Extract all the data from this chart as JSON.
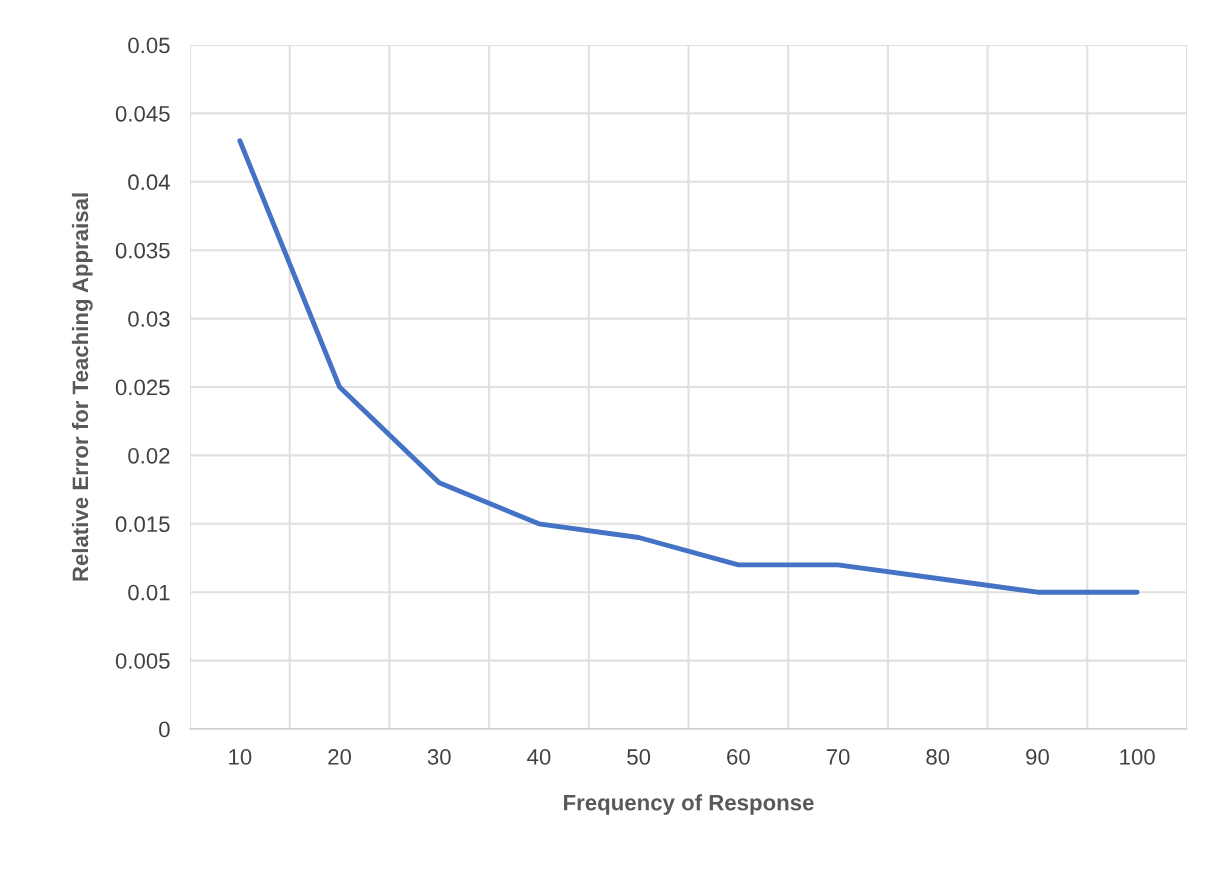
{
  "chart_data": {
    "type": "line",
    "xlabel": "Frequency of Response",
    "ylabel": "Relative Error for Teaching Appraisal",
    "categories": [
      "10",
      "20",
      "30",
      "40",
      "50",
      "60",
      "70",
      "80",
      "90",
      "100"
    ],
    "series": [
      {
        "color": "#4472c4",
        "values": [
          0.043,
          0.025,
          0.018,
          0.015,
          0.014,
          0.012,
          0.012,
          0.011,
          0.01,
          0.01
        ]
      }
    ],
    "ylim": [
      0,
      0.05
    ],
    "yticks": [
      0,
      0.005,
      0.01,
      0.015,
      0.02,
      0.025,
      0.03,
      0.035,
      0.04,
      0.045,
      0.05
    ],
    "grid": true,
    "marker": "none",
    "line_style": "solid"
  }
}
